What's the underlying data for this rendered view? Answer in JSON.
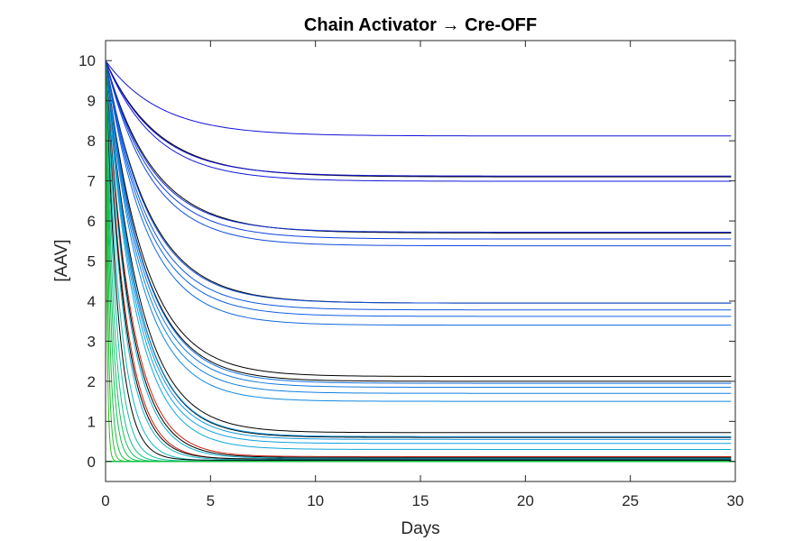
{
  "chart_data": {
    "type": "line",
    "title": "Chain Activator → Cre-OFF",
    "xlabel": "Days",
    "ylabel": "[AAV]",
    "xlim": [
      0,
      30
    ],
    "ylim": [
      -0.5,
      10.5
    ],
    "xticks": [
      0,
      5,
      10,
      15,
      20,
      25,
      30
    ],
    "yticks": [
      0,
      1,
      2,
      3,
      4,
      5,
      6,
      7,
      8,
      9,
      10
    ],
    "grid": false,
    "legend": "none",
    "colors": {
      "background": "#ffffff",
      "axes": "#262626",
      "slow_series": "#1010d8",
      "mid_series": "#1878e0",
      "fast_series": "#10b8c8",
      "very_fast_series": "#10c040",
      "black_series": "#000000",
      "red_series": "#d02010"
    },
    "series_formula": "y(t) = plateau + (10 - plateau) * exp(-t / tau)",
    "series": [
      {
        "color": "#1010d8",
        "plateau": 8.12,
        "tau": 2.6
      },
      {
        "color": "#000000",
        "plateau": 7.1,
        "tau": 2.5
      },
      {
        "color": "#1010d8",
        "plateau": 7.12,
        "tau": 2.4
      },
      {
        "color": "#1018d8",
        "plateau": 6.99,
        "tau": 2.35
      },
      {
        "color": "#000000",
        "plateau": 5.7,
        "tau": 2.3
      },
      {
        "color": "#1030d8",
        "plateau": 5.72,
        "tau": 2.2
      },
      {
        "color": "#1040dc",
        "plateau": 5.55,
        "tau": 2.2
      },
      {
        "color": "#1048dc",
        "plateau": 5.38,
        "tau": 2.15
      },
      {
        "color": "#000000",
        "plateau": 3.95,
        "tau": 2.1
      },
      {
        "color": "#1050dc",
        "plateau": 3.95,
        "tau": 2.05
      },
      {
        "color": "#1058e0",
        "plateau": 3.78,
        "tau": 2.0
      },
      {
        "color": "#1060e0",
        "plateau": 3.62,
        "tau": 1.95
      },
      {
        "color": "#1068e0",
        "plateau": 3.4,
        "tau": 1.9
      },
      {
        "color": "#000000",
        "plateau": 2.12,
        "tau": 1.85
      },
      {
        "color": "#000000",
        "plateau": 2.0,
        "tau": 1.8
      },
      {
        "color": "#1070e0",
        "plateau": 1.95,
        "tau": 1.8
      },
      {
        "color": "#1078e0",
        "plateau": 1.85,
        "tau": 1.75
      },
      {
        "color": "#1080e0",
        "plateau": 1.7,
        "tau": 1.7
      },
      {
        "color": "#1088e0",
        "plateau": 1.5,
        "tau": 1.65
      },
      {
        "color": "#000000",
        "plateau": 0.72,
        "tau": 1.6
      },
      {
        "color": "#000000",
        "plateau": 0.6,
        "tau": 1.55
      },
      {
        "color": "#1090e0",
        "plateau": 0.62,
        "tau": 1.55
      },
      {
        "color": "#1098e0",
        "plateau": 0.55,
        "tau": 1.5
      },
      {
        "color": "#10a0e0",
        "plateau": 0.45,
        "tau": 1.45
      },
      {
        "color": "#10a8d8",
        "plateau": 0.3,
        "tau": 1.4
      },
      {
        "color": "#d02010",
        "plateau": 0.12,
        "tau": 1.2
      },
      {
        "color": "#000000",
        "plateau": 0.1,
        "tau": 1.15
      },
      {
        "color": "#10b0d0",
        "plateau": 0.08,
        "tau": 1.1
      },
      {
        "color": "#d02010",
        "plateau": 0.05,
        "tau": 0.95
      },
      {
        "color": "#000000",
        "plateau": 0.06,
        "tau": 0.9
      },
      {
        "color": "#10b8c8",
        "plateau": 0.04,
        "tau": 0.85
      },
      {
        "color": "#10b8b8",
        "plateau": 0.02,
        "tau": 0.7
      },
      {
        "color": "#000000",
        "plateau": 0.03,
        "tau": 0.6
      },
      {
        "color": "#10c0a0",
        "plateau": 0.01,
        "tau": 0.5
      },
      {
        "color": "#10c080",
        "plateau": 0.0,
        "tau": 0.4
      },
      {
        "color": "#10c060",
        "plateau": 0.0,
        "tau": 0.32
      },
      {
        "color": "#10c050",
        "plateau": 0.0,
        "tau": 0.25
      },
      {
        "color": "#10c040",
        "plateau": 0.0,
        "tau": 0.18
      },
      {
        "color": "#20c030",
        "plateau": 0.0,
        "tau": 0.12
      },
      {
        "color": "#30c020",
        "plateau": 0.0,
        "tau": 0.07
      }
    ]
  }
}
